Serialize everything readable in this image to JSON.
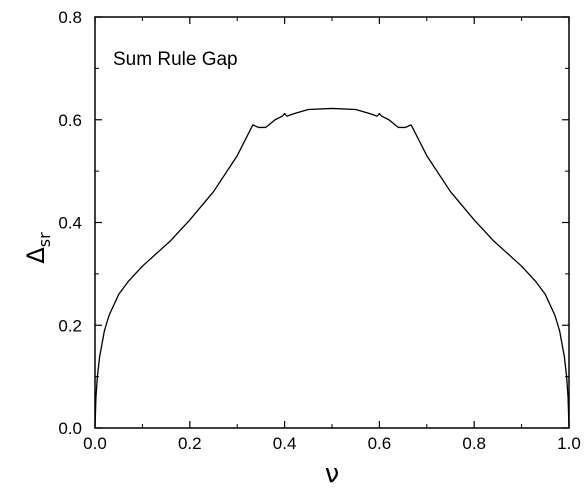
{
  "chart_data": {
    "type": "line",
    "title": "",
    "annotation": "Sum Rule Gap",
    "xlabel": "ν",
    "ylabel": "Δ",
    "ylabel_subscript": "sr",
    "xlim": [
      0.0,
      1.0
    ],
    "ylim": [
      0.0,
      0.8
    ],
    "x_ticks": [
      "0.0",
      "0.2",
      "0.4",
      "0.6",
      "0.8",
      "1.0"
    ],
    "y_ticks": [
      "0.0",
      "0.2",
      "0.4",
      "0.6",
      "0.8"
    ],
    "grid": false,
    "legend": "none",
    "line_color": "#000000",
    "series": [
      {
        "x": [
          0.0,
          0.002,
          0.005,
          0.01,
          0.02,
          0.03,
          0.05,
          0.07,
          0.1,
          0.13,
          0.16,
          0.2,
          0.25,
          0.3,
          0.333,
          0.345,
          0.36,
          0.38,
          0.395,
          0.4,
          0.405,
          0.42,
          0.45,
          0.5,
          0.55,
          0.58,
          0.595,
          0.6,
          0.605,
          0.62,
          0.64,
          0.655,
          0.667,
          0.7,
          0.75,
          0.8,
          0.84,
          0.87,
          0.9,
          0.93,
          0.95,
          0.97,
          0.98,
          0.99,
          0.995,
          0.998,
          1.0
        ],
        "y": [
          0.0,
          0.06,
          0.1,
          0.14,
          0.19,
          0.22,
          0.26,
          0.285,
          0.315,
          0.34,
          0.365,
          0.405,
          0.46,
          0.53,
          0.59,
          0.585,
          0.585,
          0.6,
          0.607,
          0.612,
          0.607,
          0.612,
          0.62,
          0.622,
          0.62,
          0.612,
          0.607,
          0.612,
          0.607,
          0.6,
          0.585,
          0.585,
          0.59,
          0.53,
          0.46,
          0.405,
          0.365,
          0.34,
          0.315,
          0.285,
          0.26,
          0.22,
          0.19,
          0.14,
          0.1,
          0.06,
          0.0
        ]
      }
    ]
  }
}
